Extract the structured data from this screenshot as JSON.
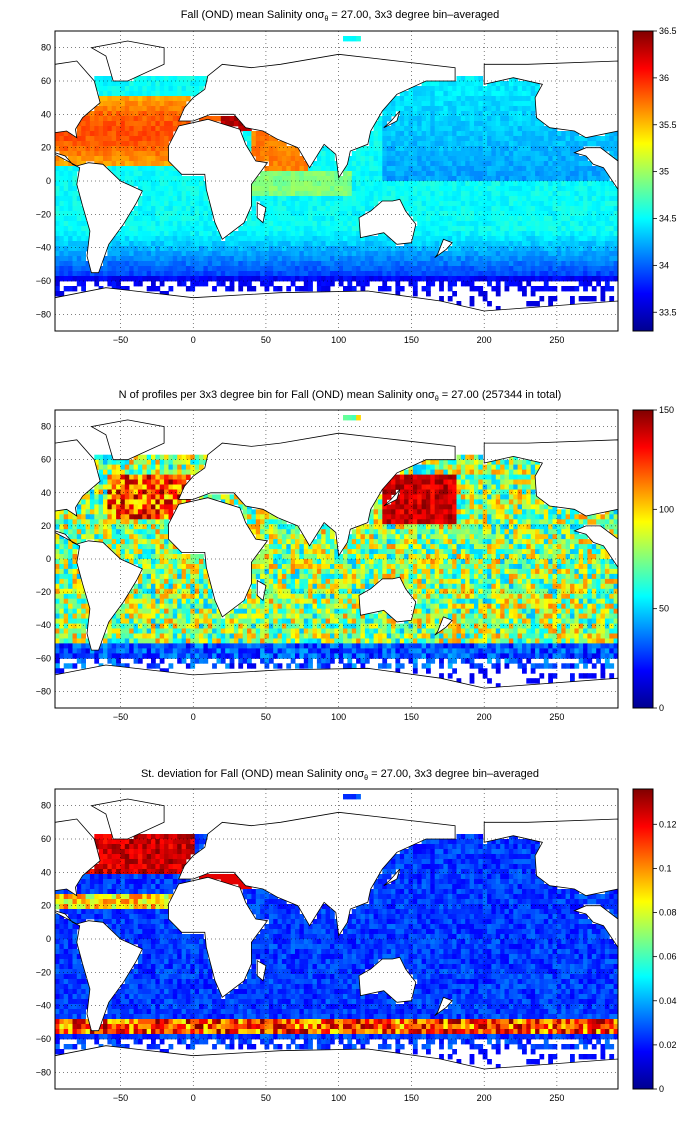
{
  "chart_data": [
    {
      "type": "heatmap",
      "title_prefix": "Fall (OND) mean Salinity on",
      "title_symbol": "σ",
      "title_subscript": "θ",
      "title_suffix": " = 27.00, 3x3 degree bin–averaged",
      "x_ticks": [
        -50,
        0,
        50,
        100,
        150,
        200,
        250
      ],
      "y_ticks": [
        80,
        60,
        40,
        20,
        0,
        -20,
        -40,
        -60,
        -80
      ],
      "xlim": [
        -95,
        292
      ],
      "ylim": [
        -90,
        90
      ],
      "colorbar_ticks": [
        36.5,
        36,
        35.5,
        35,
        34.5,
        34,
        33.5
      ],
      "colorbar_range": [
        33.3,
        36.5
      ],
      "colormap": "jet",
      "grid": true
    },
    {
      "type": "heatmap",
      "title_prefix": "N of profiles per 3x3 degree bin for Fall (OND) mean Salinity on",
      "title_symbol": "σ",
      "title_subscript": "θ",
      "title_suffix": " = 27.00 (257344 in total)",
      "x_ticks": [
        -50,
        0,
        50,
        100,
        150,
        200,
        250
      ],
      "y_ticks": [
        80,
        60,
        40,
        20,
        0,
        -20,
        -40,
        -60,
        -80
      ],
      "xlim": [
        -95,
        292
      ],
      "ylim": [
        -90,
        90
      ],
      "colorbar_ticks": [
        150,
        100,
        50,
        0
      ],
      "colorbar_range": [
        0,
        150
      ],
      "colormap": "jet",
      "grid": true
    },
    {
      "type": "heatmap",
      "title_prefix": "St. deviation for Fall (OND) mean Salinity on",
      "title_symbol": "σ",
      "title_subscript": "θ",
      "title_suffix": " = 27.00, 3x3 degree bin–averaged",
      "x_ticks": [
        -50,
        0,
        50,
        100,
        150,
        200,
        250
      ],
      "y_ticks": [
        80,
        60,
        40,
        20,
        0,
        -20,
        -40,
        -60,
        -80
      ],
      "xlim": [
        -95,
        292
      ],
      "ylim": [
        -90,
        90
      ],
      "colorbar_ticks": [
        0.12,
        0.1,
        0.08,
        0.06,
        0.04,
        0.02,
        0
      ],
      "colorbar_range": [
        0,
        0.136
      ],
      "colormap": "jet",
      "grid": true
    }
  ]
}
